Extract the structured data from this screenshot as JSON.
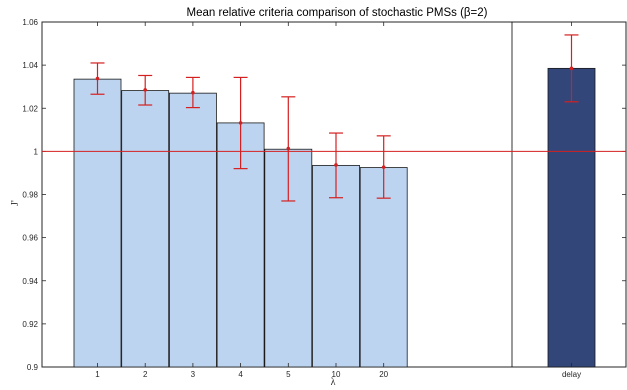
{
  "chart_data": {
    "type": "bar",
    "title": "Mean relative criteria comparison of stochastic PMSs (β=2)",
    "xlabel": "λ",
    "ylabel": "J'",
    "ylim": [
      0.9,
      1.06
    ],
    "yticks": [
      "0.9",
      "0.92",
      "0.94",
      "0.96",
      "0.98",
      "1",
      "1.02",
      "1.04",
      "1.06"
    ],
    "ytick_values": [
      0.9,
      0.92,
      0.94,
      0.96,
      0.98,
      1.0,
      1.02,
      1.04,
      1.06
    ],
    "grid": false,
    "legend": "none",
    "reference_line": 1.0,
    "categories": [
      "1",
      "2",
      "3",
      "4",
      "5",
      "10",
      "20",
      "delay"
    ],
    "series": [
      {
        "values": [
          1.0335,
          1.0282,
          1.027,
          1.0132,
          1.001,
          0.9935,
          0.9925,
          1.0385
        ],
        "error_low": [
          1.0265,
          1.0215,
          1.0203,
          0.992,
          0.977,
          0.9785,
          0.9783,
          1.023
        ],
        "error_high": [
          1.041,
          1.0352,
          1.0343,
          1.0343,
          1.0253,
          1.0085,
          1.0072,
          1.054
        ],
        "means": [
          1.0338,
          1.0285,
          1.0272,
          1.0132,
          1.0013,
          0.9937,
          0.9927,
          1.0385
        ]
      }
    ],
    "colors": {
      "bar": "#bdd4f0",
      "bar_highlight": "#32467a",
      "error_bar": "#d42020",
      "reference_line": "#d42020",
      "separator": "#000000"
    }
  }
}
